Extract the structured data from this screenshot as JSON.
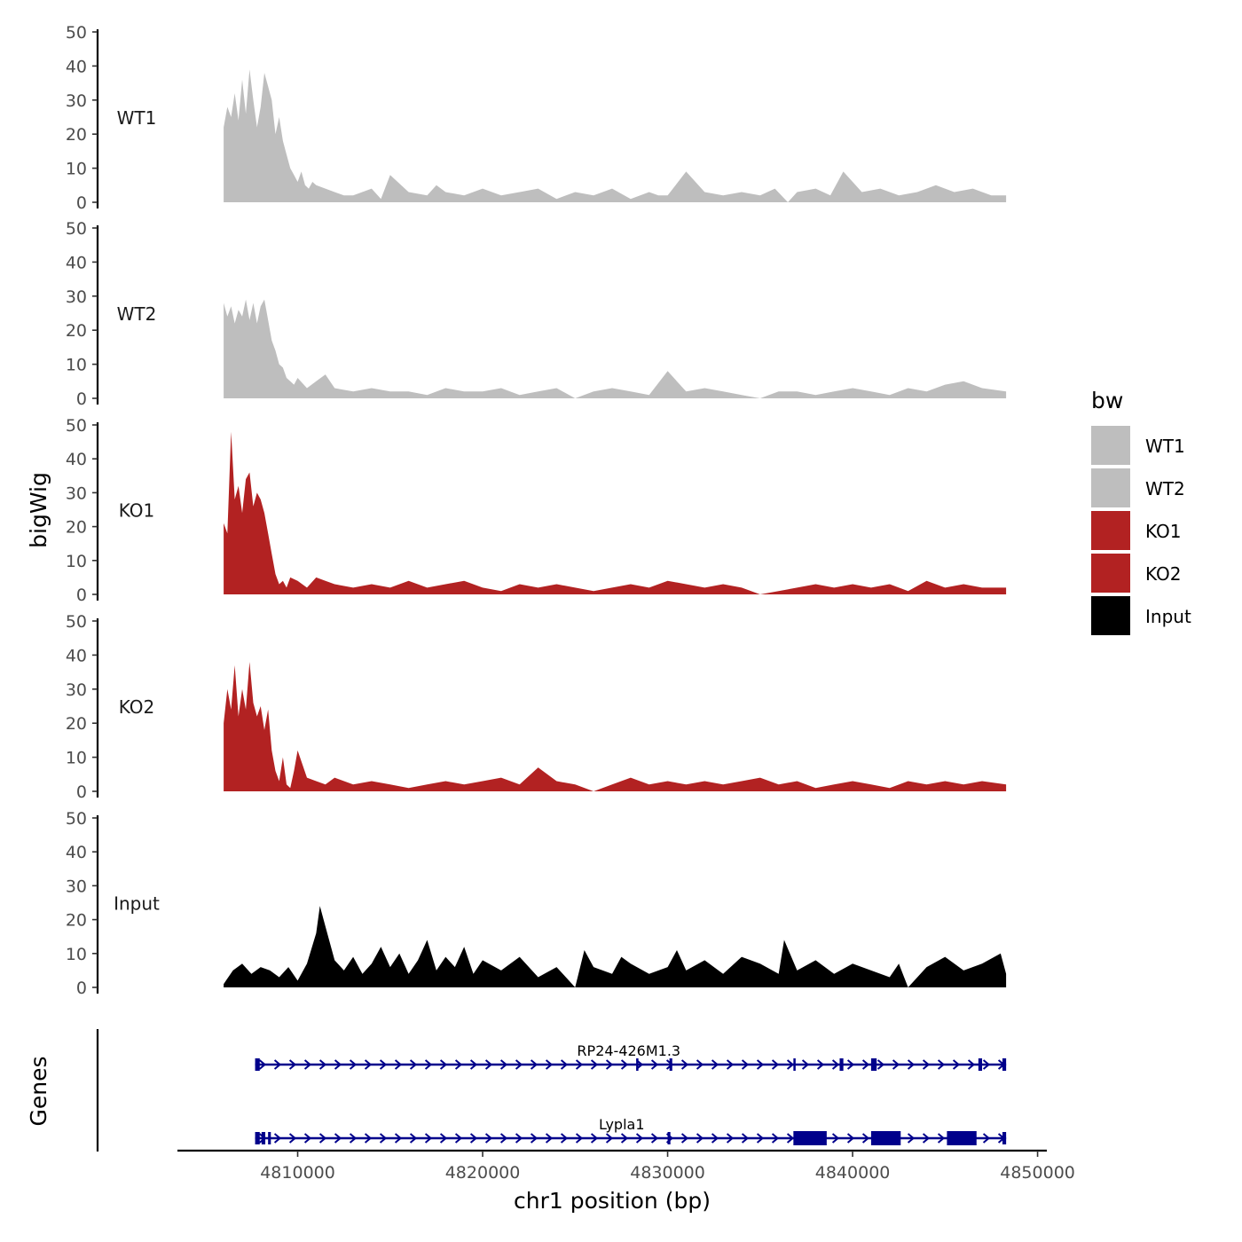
{
  "chart_data": {
    "type": "area",
    "y_axis": {
      "label": "bigWig",
      "ylim": [
        0,
        50
      ],
      "ticks": [
        0,
        10,
        20,
        30,
        40,
        50
      ]
    },
    "x_axis": {
      "label": "chr1 position (bp)",
      "xlim": [
        4803500,
        4850500
      ],
      "ticks": [
        4810000,
        4820000,
        4830000,
        4840000,
        4850000
      ],
      "tick_labels": [
        "4810000",
        "4820000",
        "4830000",
        "4840000",
        "4850000"
      ]
    },
    "data_range": [
      4806000,
      4848300
    ],
    "legend": {
      "title": "bw",
      "position": "right",
      "items": [
        {
          "label": "WT1",
          "color": "#bebebe"
        },
        {
          "label": "WT2",
          "color": "#bebebe"
        },
        {
          "label": "KO1",
          "color": "#b22222"
        },
        {
          "label": "KO2",
          "color": "#b22222"
        },
        {
          "label": "Input",
          "color": "#000000"
        }
      ]
    },
    "series": [
      {
        "name": "WT1",
        "color": "#bebebe",
        "x": [
          4806000,
          4806200,
          4806400,
          4806600,
          4806800,
          4807000,
          4807200,
          4807400,
          4807600,
          4807800,
          4808000,
          4808200,
          4808400,
          4808600,
          4808800,
          4809000,
          4809200,
          4809400,
          4809600,
          4809800,
          4810000,
          4810200,
          4810400,
          4810600,
          4810800,
          4811000,
          4811500,
          4812000,
          4812500,
          4813000,
          4814000,
          4814500,
          4815000,
          4816000,
          4817000,
          4817500,
          4818000,
          4819000,
          4820000,
          4821000,
          4822000,
          4823000,
          4824000,
          4825000,
          4826000,
          4827000,
          4828000,
          4829000,
          4829500,
          4830000,
          4831000,
          4832000,
          4833000,
          4834000,
          4835000,
          4835800,
          4836500,
          4837000,
          4838000,
          4838800,
          4839500,
          4840500,
          4841500,
          4842500,
          4843500,
          4844500,
          4845500,
          4846500,
          4847500,
          4848300
        ],
        "values": [
          22,
          28,
          25,
          32,
          24,
          36,
          26,
          39,
          30,
          22,
          28,
          38,
          34,
          30,
          20,
          25,
          18,
          14,
          10,
          8,
          6,
          9,
          5,
          4,
          6,
          5,
          4,
          3,
          2,
          2,
          4,
          1,
          8,
          3,
          2,
          5,
          3,
          2,
          4,
          2,
          3,
          4,
          1,
          3,
          2,
          4,
          1,
          3,
          2,
          2,
          9,
          3,
          2,
          3,
          2,
          4,
          0,
          3,
          4,
          2,
          9,
          3,
          4,
          2,
          3,
          5,
          3,
          4,
          2,
          2
        ]
      },
      {
        "name": "WT2",
        "color": "#bebebe",
        "x": [
          4806000,
          4806200,
          4806400,
          4806600,
          4806800,
          4807000,
          4807200,
          4807400,
          4807600,
          4807800,
          4808000,
          4808200,
          4808400,
          4808600,
          4808800,
          4809000,
          4809200,
          4809400,
          4809600,
          4809800,
          4810000,
          4810500,
          4811000,
          4811500,
          4812000,
          4813000,
          4814000,
          4815000,
          4816000,
          4817000,
          4818000,
          4819000,
          4820000,
          4821000,
          4822000,
          4823000,
          4824000,
          4825000,
          4826000,
          4827000,
          4828000,
          4829000,
          4830000,
          4831000,
          4832000,
          4833000,
          4834000,
          4835000,
          4836000,
          4837000,
          4838000,
          4839000,
          4840000,
          4841000,
          4842000,
          4843000,
          4844000,
          4845000,
          4846000,
          4847000,
          4848300
        ],
        "values": [
          28,
          24,
          27,
          22,
          26,
          24,
          29,
          23,
          28,
          22,
          27,
          29,
          23,
          17,
          14,
          10,
          9,
          6,
          5,
          4,
          6,
          3,
          5,
          7,
          3,
          2,
          3,
          2,
          2,
          1,
          3,
          2,
          2,
          3,
          1,
          2,
          3,
          0,
          2,
          3,
          2,
          1,
          8,
          2,
          3,
          2,
          1,
          0,
          2,
          2,
          1,
          2,
          3,
          2,
          1,
          3,
          2,
          4,
          5,
          3,
          2
        ]
      },
      {
        "name": "KO1",
        "color": "#b22222",
        "x": [
          4806000,
          4806200,
          4806400,
          4806600,
          4806800,
          4807000,
          4807200,
          4807400,
          4807600,
          4807800,
          4808000,
          4808200,
          4808400,
          4808600,
          4808800,
          4809000,
          4809200,
          4809400,
          4809600,
          4810000,
          4810500,
          4811000,
          4811500,
          4812000,
          4813000,
          4814000,
          4815000,
          4816000,
          4817000,
          4818000,
          4819000,
          4820000,
          4821000,
          4822000,
          4823000,
          4824000,
          4825000,
          4826000,
          4827000,
          4828000,
          4829000,
          4830000,
          4831000,
          4832000,
          4833000,
          4834000,
          4835000,
          4836000,
          4837000,
          4838000,
          4839000,
          4840000,
          4841000,
          4842000,
          4843000,
          4844000,
          4845000,
          4846000,
          4847000,
          4848300
        ],
        "values": [
          21,
          18,
          48,
          28,
          32,
          24,
          34,
          36,
          26,
          30,
          28,
          24,
          18,
          12,
          6,
          3,
          4,
          2,
          5,
          4,
          2,
          5,
          4,
          3,
          2,
          3,
          2,
          4,
          2,
          3,
          4,
          2,
          1,
          3,
          2,
          3,
          2,
          1,
          2,
          3,
          2,
          4,
          3,
          2,
          3,
          2,
          0,
          1,
          2,
          3,
          2,
          3,
          2,
          3,
          1,
          4,
          2,
          3,
          2,
          2
        ]
      },
      {
        "name": "KO2",
        "color": "#b22222",
        "x": [
          4806000,
          4806200,
          4806400,
          4806600,
          4806800,
          4807000,
          4807200,
          4807400,
          4807600,
          4807800,
          4808000,
          4808200,
          4808400,
          4808600,
          4808800,
          4809000,
          4809200,
          4809400,
          4809600,
          4809800,
          4810000,
          4810500,
          4811000,
          4811500,
          4812000,
          4813000,
          4814000,
          4815000,
          4816000,
          4817000,
          4818000,
          4819000,
          4820000,
          4821000,
          4822000,
          4823000,
          4824000,
          4825000,
          4826000,
          4827000,
          4828000,
          4829000,
          4830000,
          4831000,
          4832000,
          4833000,
          4834000,
          4835000,
          4836000,
          4837000,
          4838000,
          4839000,
          4840000,
          4841000,
          4842000,
          4843000,
          4844000,
          4845000,
          4846000,
          4847000,
          4848300
        ],
        "values": [
          20,
          30,
          24,
          37,
          22,
          30,
          24,
          38,
          26,
          22,
          25,
          18,
          24,
          12,
          6,
          3,
          10,
          2,
          1,
          6,
          12,
          4,
          3,
          2,
          4,
          2,
          3,
          2,
          1,
          2,
          3,
          2,
          3,
          4,
          2,
          7,
          3,
          2,
          0,
          2,
          4,
          2,
          3,
          2,
          3,
          2,
          3,
          4,
          2,
          3,
          1,
          2,
          3,
          2,
          1,
          3,
          2,
          3,
          2,
          3,
          2
        ]
      },
      {
        "name": "Input",
        "color": "#000000",
        "x": [
          4806000,
          4806500,
          4807000,
          4807500,
          4808000,
          4808500,
          4809000,
          4809500,
          4810000,
          4810500,
          4811000,
          4811200,
          4811500,
          4812000,
          4812500,
          4813000,
          4813500,
          4814000,
          4814500,
          4815000,
          4815500,
          4816000,
          4816500,
          4817000,
          4817500,
          4818000,
          4818500,
          4819000,
          4819500,
          4820000,
          4821000,
          4822000,
          4823000,
          4824000,
          4825000,
          4825500,
          4826000,
          4827000,
          4827500,
          4828000,
          4829000,
          4830000,
          4830500,
          4831000,
          4832000,
          4833000,
          4834000,
          4835000,
          4836000,
          4836300,
          4837000,
          4838000,
          4839000,
          4840000,
          4841000,
          4842000,
          4842500,
          4843000,
          4844000,
          4845000,
          4846000,
          4847000,
          4848000,
          4848300
        ],
        "values": [
          1,
          5,
          7,
          4,
          6,
          5,
          3,
          6,
          2,
          7,
          16,
          24,
          18,
          8,
          5,
          9,
          4,
          7,
          12,
          6,
          10,
          4,
          8,
          14,
          5,
          9,
          6,
          12,
          4,
          8,
          5,
          9,
          3,
          6,
          0,
          11,
          6,
          4,
          9,
          7,
          4,
          6,
          11,
          5,
          8,
          4,
          9,
          7,
          4,
          14,
          5,
          8,
          4,
          7,
          5,
          3,
          7,
          0,
          6,
          9,
          5,
          7,
          10,
          4
        ]
      }
    ],
    "genes": {
      "label": "Genes",
      "color": "#00008b",
      "transcripts": [
        {
          "name": "RP24-426M1.3",
          "start": 4807700,
          "end": 4848300,
          "exons": [
            [
              4807700,
              4807950
            ],
            [
              4828300,
              4828400
            ],
            [
              4830100,
              4830250
            ],
            [
              4836800,
              4836900
            ],
            [
              4839300,
              4839500
            ],
            [
              4841000,
              4841300
            ],
            [
              4846800,
              4847000
            ],
            [
              4848100,
              4848300
            ]
          ]
        },
        {
          "name": "Lypla1",
          "start": 4807700,
          "end": 4848300,
          "exons": [
            [
              4807700,
              4807950
            ],
            [
              4808050,
              4808250
            ],
            [
              4808400,
              4808550
            ],
            [
              4830000,
              4830150
            ],
            [
              4836800,
              4838600
            ],
            [
              4841000,
              4842600
            ],
            [
              4845100,
              4846700
            ],
            [
              4848100,
              4848300
            ]
          ]
        }
      ]
    }
  }
}
